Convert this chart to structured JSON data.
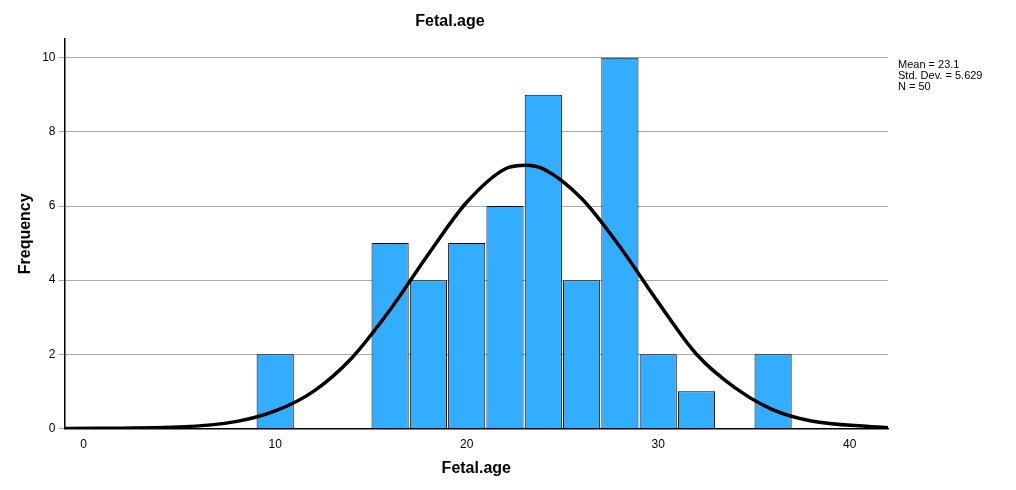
{
  "chart_data": {
    "type": "histogram",
    "title": "Fetal.age",
    "xlabel": "Fetal.age",
    "ylabel": "Frequency",
    "bins": [
      9,
      11,
      13,
      15,
      17,
      19,
      21,
      23,
      25,
      27,
      29,
      31,
      33,
      35,
      37
    ],
    "values": [
      2,
      0,
      0,
      5,
      4,
      5,
      6,
      9,
      4,
      10,
      2,
      1,
      0,
      2
    ],
    "color": "#33adff",
    "series": [
      {
        "type": "line",
        "color": "#000000",
        "x": [
          -1,
          5,
          8,
          10,
          12,
          14,
          16,
          18,
          20,
          22,
          23.1,
          24,
          26,
          28,
          30,
          32,
          34,
          36,
          38,
          41,
          42
        ],
        "values": [
          0,
          0.04,
          0.19,
          0.47,
          1.0,
          1.9,
          3.2,
          4.7,
          6.1,
          7.0,
          7.1,
          7.0,
          6.2,
          4.9,
          3.4,
          2.0,
          1.1,
          0.5,
          0.2,
          0.05,
          0.02
        ]
      }
    ],
    "xlim": [
      -1,
      42
    ],
    "xticks": [
      0,
      10,
      20,
      30,
      40
    ],
    "ylim": [
      0,
      10.5
    ],
    "yticks": [
      0,
      2,
      4,
      6,
      8,
      10
    ],
    "grid": "y",
    "legend": false,
    "line_style": "solid",
    "marker": "none",
    "annotations": [
      "Mean = 23.1",
      "Std. Dev. = 5.629",
      "N = 50"
    ]
  }
}
